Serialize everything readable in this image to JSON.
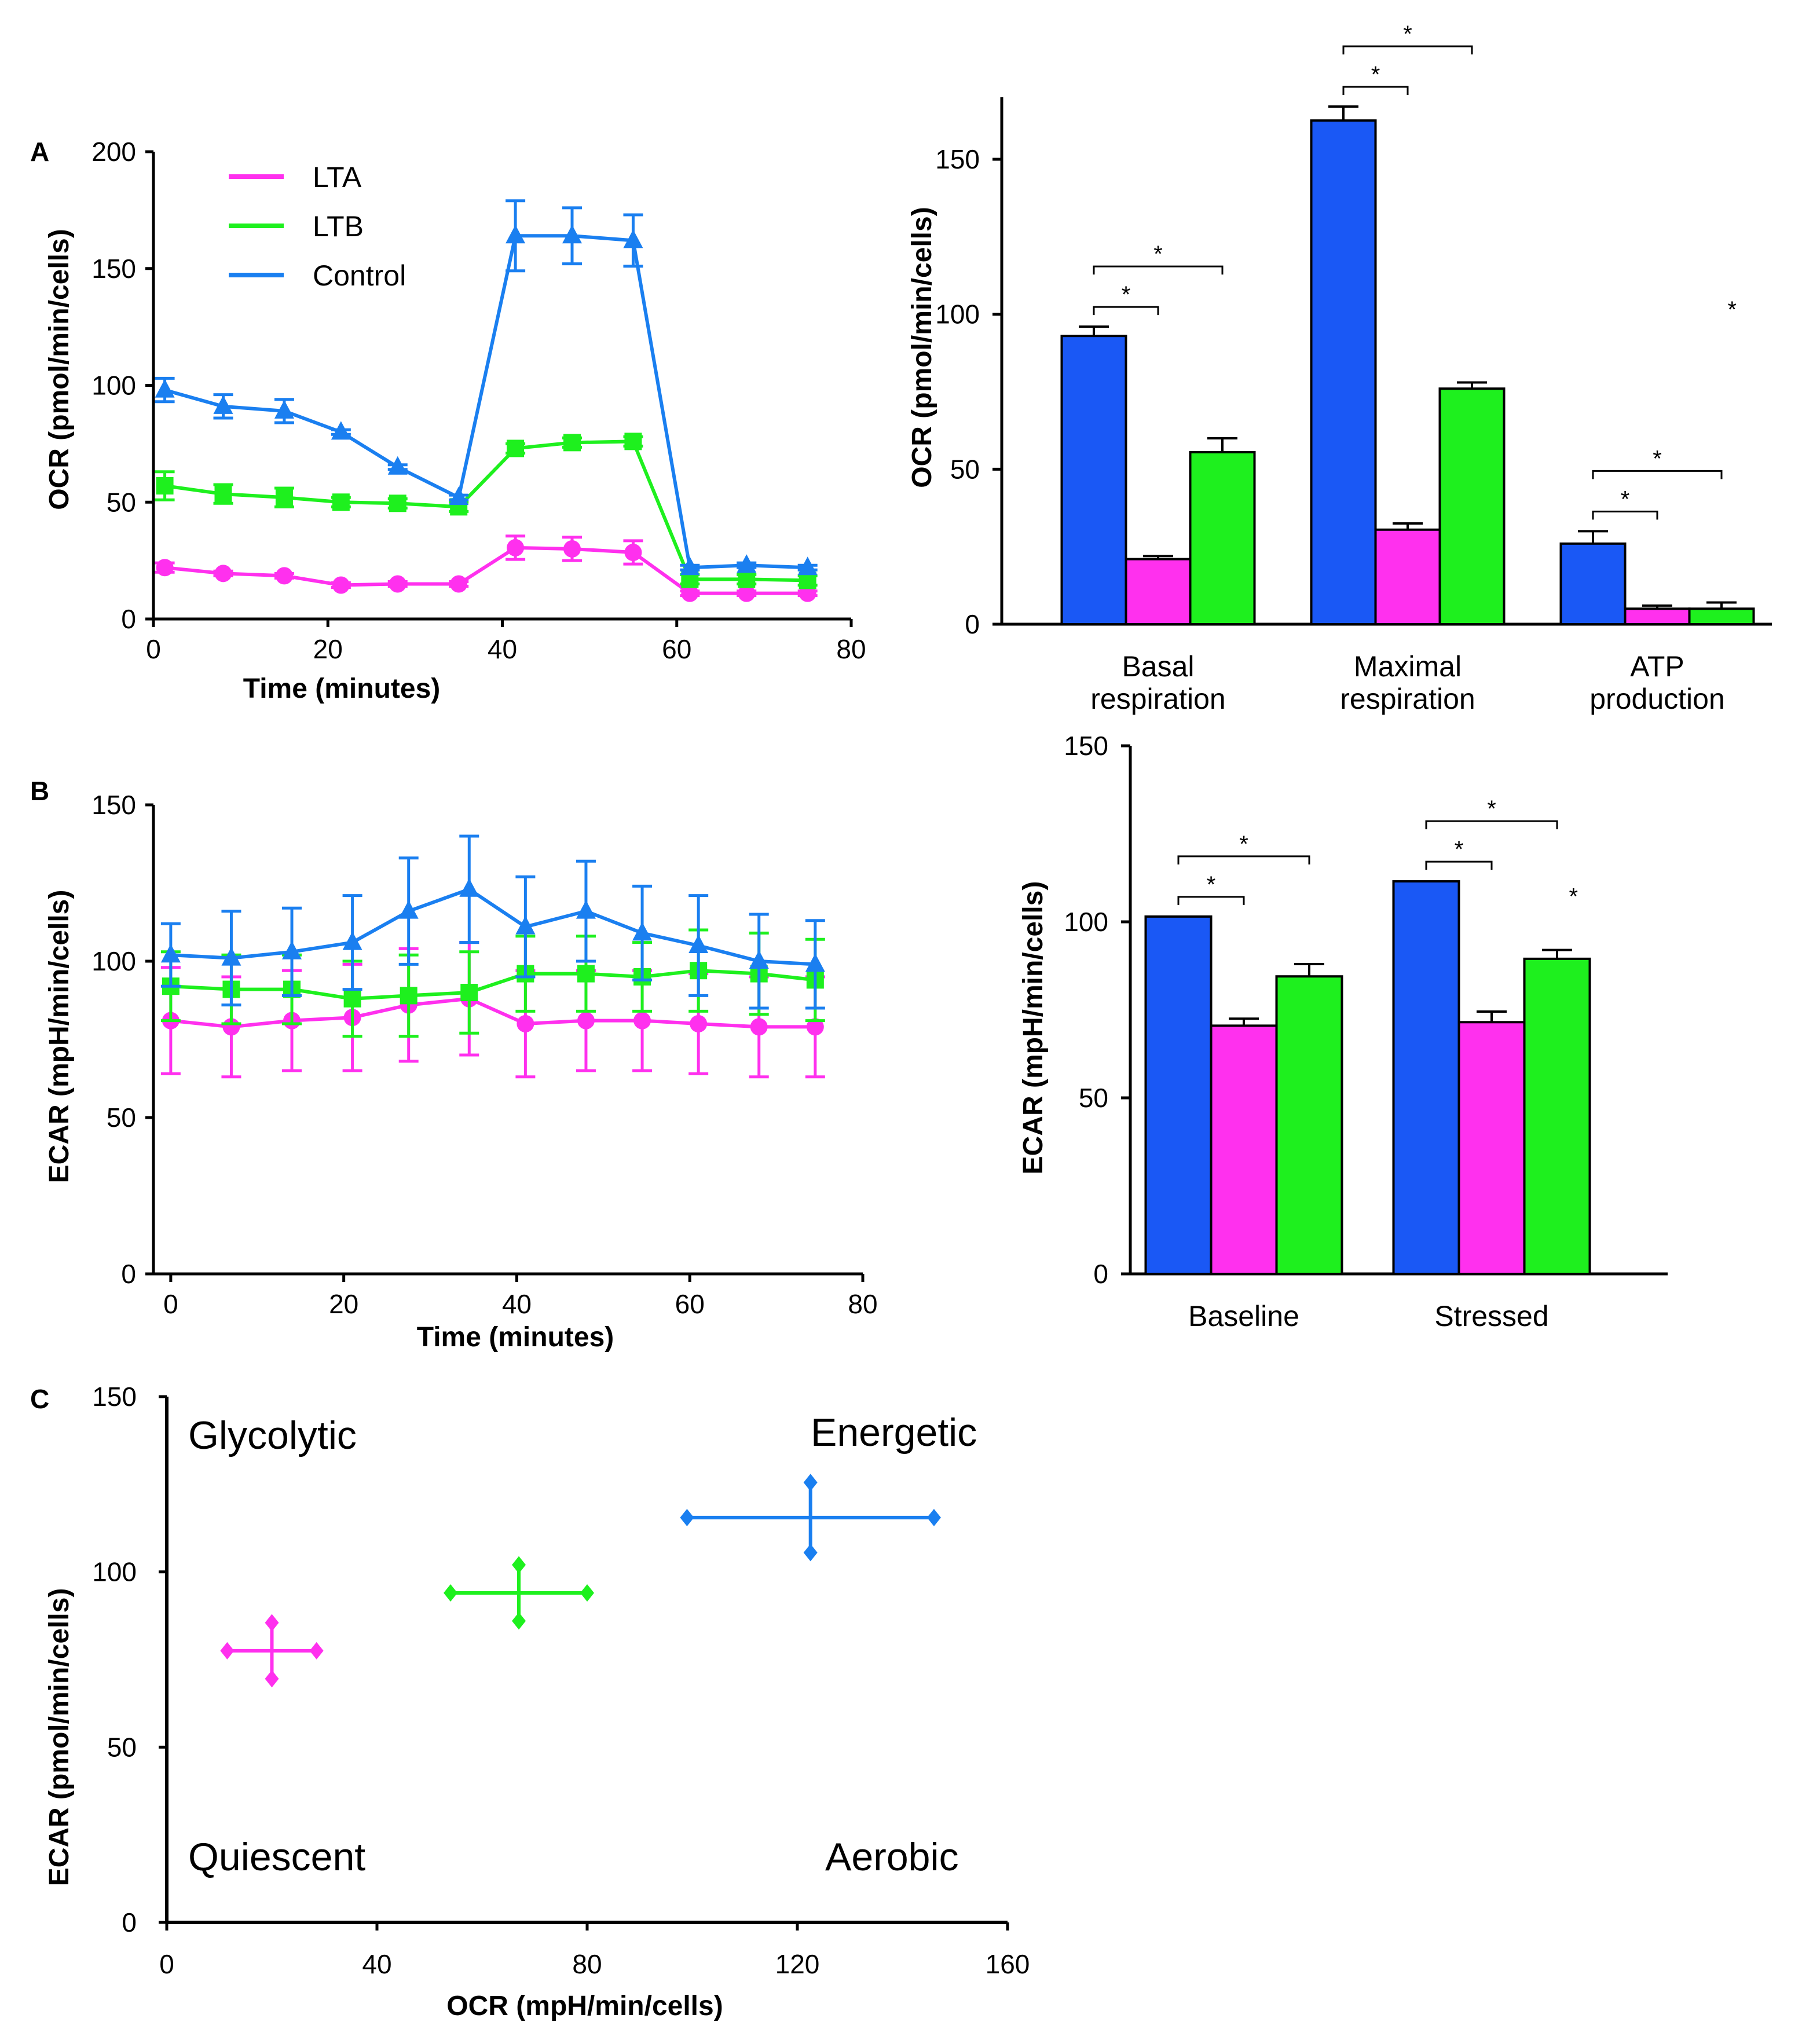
{
  "colors": {
    "lta": "#ff30ee",
    "ltb": "#1ef01e",
    "control": "#1a7ff0",
    "control_bar": "#1a58f5",
    "axis": "#000000"
  },
  "panel_labels": {
    "a": "A",
    "b": "B",
    "c": "C"
  },
  "chart_data": [
    {
      "id": "A_left",
      "type": "line",
      "ylabel": "OCR (pmol/min/cells)",
      "xlabel": "Time (minutes)",
      "xlim": [
        0,
        80
      ],
      "ylim": [
        0,
        200
      ],
      "xticks": [
        0,
        20,
        40,
        60,
        80
      ],
      "yticks": [
        0,
        50,
        100,
        150,
        200
      ],
      "legend": {
        "position": "top-left",
        "entries": [
          "LTA",
          "LTB",
          "Control"
        ]
      },
      "x": [
        1.3,
        8,
        15,
        21.5,
        28,
        35,
        41.5,
        48,
        55,
        61.5,
        68,
        75
      ],
      "series": [
        {
          "name": "LTA",
          "marker": "circle",
          "values": [
            22,
            19.5,
            18.5,
            14.5,
            15,
            15,
            30.5,
            30,
            28.5,
            11,
            11,
            11
          ],
          "errors": [
            2,
            1,
            1,
            1,
            1,
            1,
            5,
            5,
            5,
            1,
            1,
            1
          ]
        },
        {
          "name": "LTB",
          "marker": "square",
          "values": [
            57,
            53.5,
            52,
            50,
            49.5,
            48,
            73,
            75.5,
            76,
            17,
            17,
            16.5
          ],
          "errors": [
            6,
            4,
            4,
            2,
            2,
            2,
            2,
            2,
            2,
            2,
            2,
            2
          ]
        },
        {
          "name": "Control",
          "marker": "triangle",
          "values": [
            98,
            91,
            89,
            80,
            65,
            52,
            164,
            164,
            162,
            22,
            23,
            22
          ],
          "errors": [
            5,
            5,
            5,
            1,
            1,
            1,
            15,
            12,
            11,
            1,
            1,
            1
          ]
        }
      ]
    },
    {
      "id": "A_right",
      "type": "bar",
      "ylabel": "OCR (pmol/min/cells)",
      "ylim": [
        0,
        170
      ],
      "yticks": [
        0,
        50,
        100,
        150
      ],
      "categories": [
        [
          "Basal",
          "respiration"
        ],
        [
          "Maximal",
          "respiration"
        ],
        [
          "ATP",
          "production"
        ]
      ],
      "series": [
        {
          "name": "Control",
          "values": [
            93,
            162.5,
            26
          ],
          "errors": [
            3,
            4.5,
            4
          ]
        },
        {
          "name": "LTA",
          "values": [
            21,
            30.5,
            5
          ],
          "errors": [
            1,
            2,
            1
          ]
        },
        {
          "name": "LTB",
          "values": [
            55.5,
            76,
            5
          ],
          "errors": [
            4.5,
            2,
            2
          ]
        }
      ],
      "significance": [
        {
          "group": 0,
          "from": 0,
          "to": 1,
          "level": 1,
          "label": "*"
        },
        {
          "group": 0,
          "from": 0,
          "to": 2,
          "level": 2,
          "label": "*"
        },
        {
          "group": 1,
          "from": 0,
          "to": 1,
          "level": 1,
          "label": "*"
        },
        {
          "group": 1,
          "from": 0,
          "to": 2,
          "level": 2,
          "label": "*"
        },
        {
          "group": 2,
          "from": 0,
          "to": 1,
          "level": 1,
          "label": "*"
        },
        {
          "group": 2,
          "from": 0,
          "to": 2,
          "level": 2,
          "label": "*"
        }
      ],
      "annotations": [
        {
          "text": "*",
          "x": 2.3,
          "y": 99
        }
      ]
    },
    {
      "id": "B_left",
      "type": "line",
      "ylabel": "ECAR (mpH/min/cells)",
      "xlabel": "Time (minutes)",
      "xlim": [
        -2,
        80
      ],
      "ylim": [
        0,
        150
      ],
      "xticks": [
        0,
        20,
        40,
        60,
        80
      ],
      "yticks": [
        0,
        50,
        100,
        150
      ],
      "x": [
        0,
        7,
        14,
        21,
        27.5,
        34.5,
        41,
        48,
        54.5,
        61,
        68,
        74.5
      ],
      "series": [
        {
          "name": "LTA",
          "marker": "circle",
          "values": [
            81,
            79,
            81,
            82,
            86,
            88,
            80,
            81,
            81,
            80,
            79,
            79
          ],
          "errors": [
            17,
            16,
            16,
            17,
            18,
            18,
            17,
            16,
            16,
            16,
            16,
            16
          ]
        },
        {
          "name": "LTB",
          "marker": "square",
          "values": [
            92,
            91,
            91,
            88,
            89,
            90,
            96,
            96,
            95,
            97,
            96,
            94
          ],
          "errors": [
            11,
            11,
            11,
            12,
            13,
            13,
            12,
            12,
            11,
            13,
            13,
            13
          ]
        },
        {
          "name": "Control",
          "marker": "triangle",
          "values": [
            102,
            101,
            103,
            106,
            116,
            123,
            111,
            116,
            109,
            105,
            100,
            99
          ],
          "errors": [
            10,
            15,
            14,
            15,
            17,
            17,
            16,
            16,
            15,
            16,
            15,
            14
          ]
        }
      ]
    },
    {
      "id": "B_right",
      "type": "bar",
      "ylabel": "ECAR (mpH/min/cells)",
      "ylim": [
        0,
        150
      ],
      "yticks": [
        0,
        50,
        100,
        150
      ],
      "categories": [
        [
          "Baseline"
        ],
        [
          "Stressed"
        ]
      ],
      "series": [
        {
          "name": "Control",
          "values": [
            101.5,
            111.5
          ],
          "errors": [
            0,
            0
          ]
        },
        {
          "name": "LTA",
          "values": [
            70.5,
            71.5
          ],
          "errors": [
            2,
            3
          ]
        },
        {
          "name": "LTB",
          "values": [
            84.5,
            89.5
          ],
          "errors": [
            3.5,
            2.5
          ]
        }
      ],
      "significance": [
        {
          "group": 0,
          "from": 0,
          "to": 1,
          "level": 1,
          "label": "*"
        },
        {
          "group": 0,
          "from": 0,
          "to": 2,
          "level": 2,
          "label": "*"
        },
        {
          "group": 1,
          "from": 0,
          "to": 1,
          "level": 1,
          "label": "*"
        },
        {
          "group": 1,
          "from": 0,
          "to": 2,
          "level": 2,
          "label": "*"
        }
      ],
      "annotations": [
        {
          "text": "*",
          "x": 1.33,
          "y": 105
        }
      ]
    },
    {
      "id": "C",
      "type": "scatter",
      "xlabel": "OCR (mpH/min/cells)",
      "ylabel": "ECAR (pmol/min/cells)",
      "xlim": [
        0,
        160
      ],
      "ylim": [
        0,
        150
      ],
      "xticks": [
        0,
        40,
        80,
        120,
        160
      ],
      "yticks": [
        0,
        50,
        100,
        150
      ],
      "points": [
        {
          "name": "LTA",
          "x": 20,
          "y": 77.5,
          "xerr": 8.5,
          "yerr": 8
        },
        {
          "name": "LTB",
          "x": 67,
          "y": 94,
          "xerr": 13,
          "yerr": 8
        },
        {
          "name": "Control",
          "x": 122.5,
          "y": 115.5,
          "xerr": 23.5,
          "yerr": 10
        }
      ],
      "quadrant_labels": {
        "top_left": "Glycolytic",
        "top_right": "Energetic",
        "bottom_left": "Quiescent",
        "bottom_right": "Aerobic"
      }
    }
  ]
}
